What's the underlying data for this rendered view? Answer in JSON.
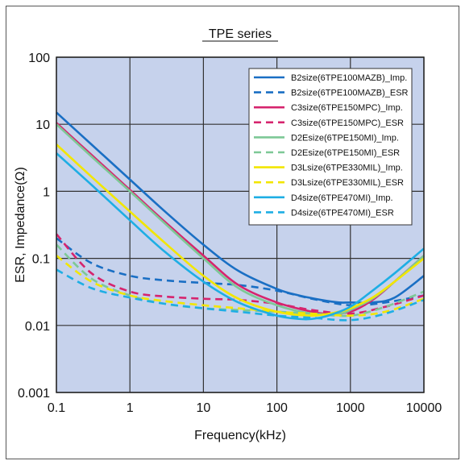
{
  "chart_data": {
    "type": "line",
    "title": "TPE series",
    "xlabel": "Frequency(kHz)",
    "ylabel": "ESR, Impedance(Ω)",
    "xscale": "log",
    "yscale": "log",
    "xlim": [
      0.1,
      10000
    ],
    "ylim": [
      0.001,
      100
    ],
    "x_ticks": [
      "0.1",
      "1",
      "10",
      "100",
      "1000",
      "10000"
    ],
    "y_ticks": [
      "0.001",
      "0.01",
      "0.1",
      "1",
      "10",
      "100"
    ],
    "grid": true,
    "plot_background": "#c6d2ec",
    "legend_position": "top-right",
    "series": [
      {
        "name": "B2size(6TPE100MAZB)_Imp.",
        "color": "#1a6fc4",
        "dash": "solid",
        "x": [
          0.1,
          0.3,
          1,
          3,
          10,
          30,
          100,
          200,
          400,
          700,
          1000,
          2000,
          4000,
          10000
        ],
        "y": [
          15,
          5,
          1.5,
          0.5,
          0.16,
          0.065,
          0.035,
          0.028,
          0.024,
          0.022,
          0.022,
          0.022,
          0.026,
          0.055
        ]
      },
      {
        "name": "B2size(6TPE100MAZB)_ESR",
        "color": "#1a6fc4",
        "dash": "dashed",
        "x": [
          0.1,
          0.3,
          1,
          3,
          10,
          30,
          100,
          300,
          1000,
          3000,
          10000
        ],
        "y": [
          0.2,
          0.085,
          0.055,
          0.047,
          0.043,
          0.04,
          0.033,
          0.025,
          0.02,
          0.022,
          0.028
        ]
      },
      {
        "name": "C3size(6TPE150MPC)_Imp.",
        "color": "#d6246e",
        "dash": "solid",
        "x": [
          0.1,
          0.3,
          1,
          3,
          10,
          30,
          100,
          300,
          500,
          1000,
          2000,
          4000,
          10000
        ],
        "y": [
          10.5,
          3.5,
          1.05,
          0.35,
          0.11,
          0.04,
          0.022,
          0.016,
          0.015,
          0.016,
          0.024,
          0.045,
          0.11
        ]
      },
      {
        "name": "C3size(6TPE150MPC)_ESR",
        "color": "#d6246e",
        "dash": "dashed",
        "x": [
          0.1,
          0.3,
          1,
          3,
          10,
          30,
          100,
          300,
          1000,
          3000,
          10000
        ],
        "y": [
          0.23,
          0.06,
          0.032,
          0.027,
          0.025,
          0.024,
          0.021,
          0.017,
          0.015,
          0.019,
          0.028
        ]
      },
      {
        "name": "D2Esize(6TPE150MI)_Imp.",
        "color": "#7dc896",
        "dash": "solid",
        "x": [
          0.1,
          0.3,
          1,
          3,
          10,
          30,
          100,
          300,
          700,
          1000,
          2000,
          4000,
          10000
        ],
        "y": [
          10,
          3.3,
          1,
          0.33,
          0.1,
          0.036,
          0.02,
          0.015,
          0.015,
          0.017,
          0.025,
          0.045,
          0.11
        ]
      },
      {
        "name": "D2Esize(6TPE150MI)_ESR",
        "color": "#7dc896",
        "dash": "dashed",
        "x": [
          0.1,
          0.3,
          1,
          3,
          10,
          30,
          100,
          300,
          1000,
          3000,
          10000
        ],
        "y": [
          0.16,
          0.05,
          0.028,
          0.021,
          0.018,
          0.017,
          0.016,
          0.015,
          0.014,
          0.019,
          0.032
        ]
      },
      {
        "name": "D3Lsize(6TPE330MIL)_Imp.",
        "color": "#f2e600",
        "dash": "solid",
        "x": [
          0.1,
          0.3,
          1,
          3,
          10,
          30,
          100,
          300,
          700,
          1000,
          2000,
          4000,
          10000
        ],
        "y": [
          5,
          1.65,
          0.5,
          0.17,
          0.055,
          0.025,
          0.016,
          0.014,
          0.016,
          0.018,
          0.026,
          0.045,
          0.1
        ]
      },
      {
        "name": "D3Lsize(6TPE330MIL)_ESR",
        "color": "#f2e600",
        "dash": "dashed",
        "x": [
          0.1,
          0.3,
          1,
          3,
          10,
          30,
          100,
          300,
          1000,
          3000,
          10000
        ],
        "y": [
          0.11,
          0.045,
          0.028,
          0.023,
          0.02,
          0.018,
          0.016,
          0.015,
          0.014,
          0.016,
          0.025
        ]
      },
      {
        "name": "D4size(6TPE470MI)_Imp.",
        "color": "#1eaee4",
        "dash": "solid",
        "x": [
          0.1,
          0.3,
          1,
          3,
          10,
          30,
          100,
          200,
          300,
          500,
          1000,
          2000,
          4000,
          10000
        ],
        "y": [
          3.7,
          1.25,
          0.37,
          0.125,
          0.045,
          0.022,
          0.014,
          0.0125,
          0.0125,
          0.014,
          0.019,
          0.033,
          0.06,
          0.14
        ]
      },
      {
        "name": "D4size(6TPE470MI)_ESR",
        "color": "#1eaee4",
        "dash": "dashed",
        "x": [
          0.1,
          0.3,
          1,
          3,
          10,
          30,
          100,
          300,
          1000,
          3000,
          10000
        ],
        "y": [
          0.068,
          0.036,
          0.026,
          0.021,
          0.018,
          0.016,
          0.014,
          0.013,
          0.012,
          0.015,
          0.024
        ]
      }
    ]
  }
}
